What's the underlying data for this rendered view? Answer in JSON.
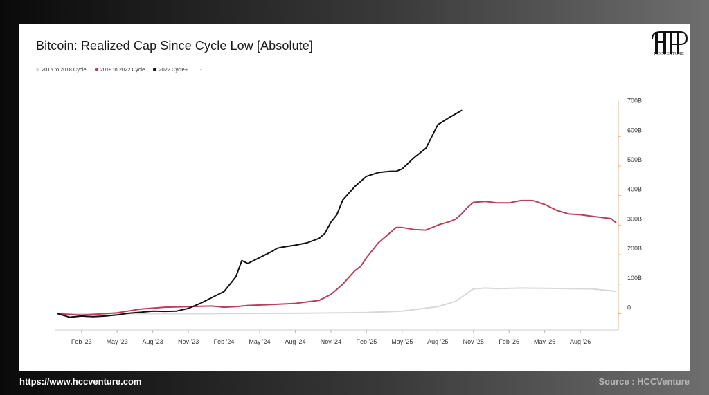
{
  "footer": {
    "url": "https://www.hccventure.com",
    "source": "Source : HCCVenture"
  },
  "logo": {
    "text": "HCCVENTURE"
  },
  "colors": {
    "cycle_2015": "#d8d8d8",
    "cycle_2018": "#b8405a",
    "cycle_2022": "#111111",
    "right_axis": "#f2b25c"
  },
  "chart_data": {
    "type": "line",
    "title": "Bitcoin: Realized Cap Since Cycle Low [Absolute]",
    "legend": [
      "2015 to 2018 Cycle",
      "2018 to 2022 Cycle",
      "2022 Cycle+",
      "-"
    ],
    "legend_position": "top-left",
    "grid": false,
    "x_tick_labels": [
      "Feb '23",
      "May '23",
      "Aug '23",
      "Nov '23",
      "Feb '24",
      "May '24",
      "Aug '24",
      "Nov '24",
      "Feb '25",
      "May '25",
      "Aug '25",
      "Nov '25",
      "Feb '26",
      "May '26",
      "Aug '26"
    ],
    "x_tick_pos": [
      1,
      4,
      7,
      10,
      13,
      16,
      19,
      22,
      25,
      28,
      31,
      34,
      37,
      40,
      43
    ],
    "xlim": [
      -1.2,
      46.2
    ],
    "y_ticks": [
      0,
      100,
      200,
      300,
      400,
      500,
      600,
      700
    ],
    "y_tick_labels": [
      "0",
      "100B",
      "200B",
      "300B",
      "400B",
      "500B",
      "600B",
      "700B"
    ],
    "ylim": [
      -55,
      720
    ],
    "y_axis_side": "right",
    "series": [
      {
        "name": "2015 to 2018 Cycle",
        "color_key": "cycle_2015",
        "x": [
          -1,
          5,
          10,
          15,
          20,
          25,
          28,
          31,
          32.5,
          33.5,
          34,
          35,
          36,
          38,
          40,
          42,
          44,
          46
        ],
        "y": [
          0,
          0,
          0,
          1,
          2,
          4,
          9,
          24,
          42,
          70,
          84,
          87,
          85,
          87,
          86,
          85,
          84,
          76
        ]
      },
      {
        "name": "2018 to 2022 Cycle",
        "color_key": "cycle_2018",
        "x": [
          -1,
          1,
          4,
          6,
          8,
          10,
          11,
          12,
          13,
          14,
          15,
          17,
          19,
          21,
          22,
          23,
          24,
          24.5,
          25,
          26,
          27,
          27.5,
          28,
          29,
          30,
          31,
          32,
          32.5,
          33,
          33.5,
          34,
          35,
          36,
          37,
          38,
          39,
          40,
          41,
          42,
          43,
          44,
          45,
          45.6,
          46
        ],
        "y": [
          0,
          -5,
          3,
          16,
          22,
          24,
          25,
          26,
          22,
          24,
          28,
          31,
          35,
          45,
          65,
          100,
          145,
          160,
          190,
          240,
          275,
          292,
          292,
          285,
          283,
          300,
          312,
          320,
          338,
          360,
          377,
          380,
          375,
          375,
          383,
          383,
          370,
          350,
          338,
          335,
          330,
          325,
          322,
          308
        ]
      },
      {
        "name": "2022 Cycle+",
        "color_key": "cycle_2022",
        "x": [
          -1,
          0,
          1,
          2,
          3,
          4,
          5,
          6,
          7,
          8,
          9,
          10,
          11,
          12,
          13,
          14,
          14.5,
          15,
          16,
          17,
          17.5,
          18,
          19,
          20,
          21,
          21.5,
          22,
          22.5,
          23,
          24,
          25,
          26,
          27,
          27.5,
          28,
          29,
          30,
          30.5,
          31,
          32,
          33
        ],
        "y": [
          0,
          -12,
          -8,
          -10,
          -8,
          -4,
          2,
          5,
          9,
          8,
          9,
          18,
          35,
          55,
          75,
          125,
          180,
          170,
          190,
          210,
          222,
          226,
          232,
          240,
          255,
          272,
          310,
          335,
          385,
          430,
          465,
          478,
          482,
          482,
          490,
          528,
          560,
          600,
          640,
          665,
          688
        ]
      }
    ]
  }
}
